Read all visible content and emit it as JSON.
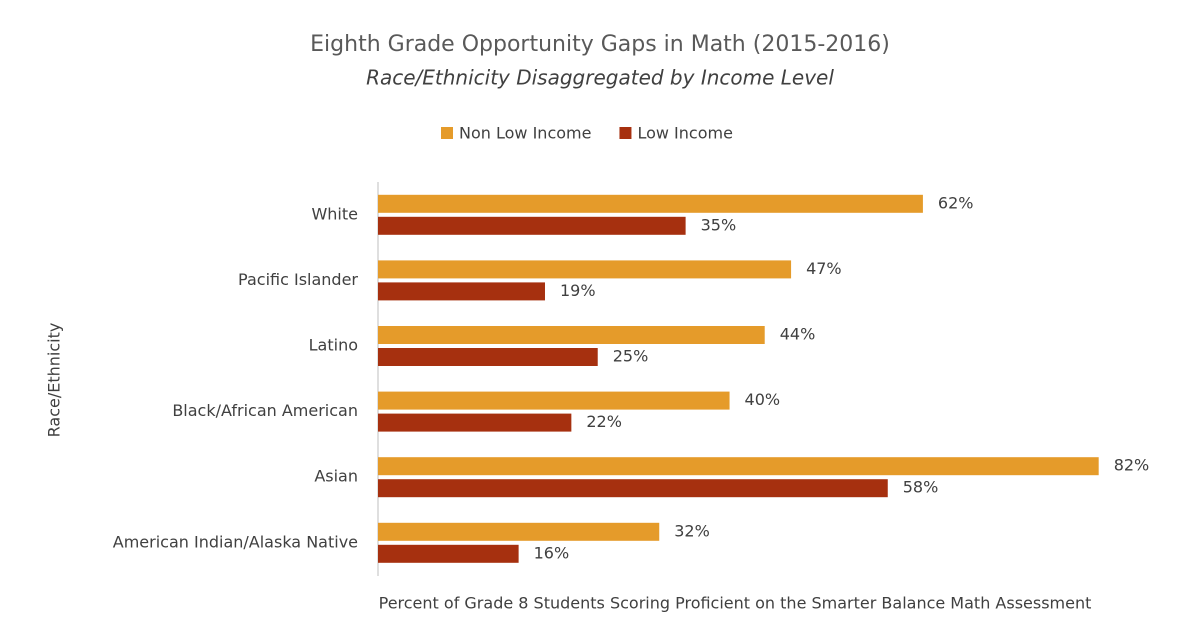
{
  "chart_data": {
    "type": "bar",
    "orientation": "horizontal",
    "title": "Eighth Grade Opportunity Gaps in Math (2015-2016)",
    "subtitle": "Race/Ethnicity Disaggregated by Income Level",
    "x_label": "Percent of Grade 8 Students Scoring Proficient on the Smarter Balance Math Assessment",
    "y_label": "Race/Ethnicity",
    "categories": [
      "White",
      "Pacific Islander",
      "Latino",
      "Black/African American",
      "Asian",
      "American Indian/Alaska Native"
    ],
    "series": [
      {
        "name": "Non Low Income",
        "color": "#e59b2a",
        "values": [
          62,
          47,
          44,
          40,
          82,
          32
        ],
        "value_labels": [
          "62%",
          "47%",
          "44%",
          "40%",
          "82%",
          "32%"
        ]
      },
      {
        "name": "Low Income",
        "color": "#a6300f",
        "values": [
          35,
          19,
          25,
          22,
          58,
          16
        ],
        "value_labels": [
          "35%",
          "19%",
          "25%",
          "22%",
          "58%",
          "16%"
        ]
      }
    ],
    "xlim": [
      0,
      90
    ],
    "legend": "top",
    "grid": false
  }
}
